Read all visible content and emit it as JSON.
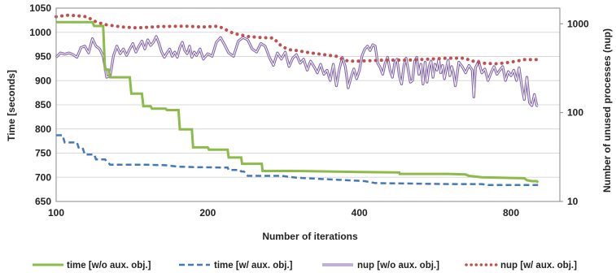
{
  "chart_data": {
    "type": "line",
    "xlabel": "Number of iterations",
    "ylabel": "Time [seconds]",
    "y2label": "Number of unused processes (nup)",
    "x_scale": "log",
    "y2_scale": "log",
    "xlim": [
      100,
      1000
    ],
    "ylim": [
      650,
      1050
    ],
    "y2lim": [
      10,
      1500
    ],
    "grid": "horizontal",
    "legend_position": "bottom",
    "x_ticks": [
      "100",
      "200",
      "400",
      "800"
    ],
    "y_ticks": [
      "650",
      "700",
      "750",
      "800",
      "850",
      "900",
      "950",
      "1000",
      "1050"
    ],
    "y2_ticks": [
      "10",
      "100",
      "1000"
    ],
    "series": [
      {
        "name": "time [w/o aux. obj.]",
        "axis": "left",
        "color": "#8dbb4a",
        "style": "solid",
        "points": [
          [
            100,
            1021
          ],
          [
            118,
            1021
          ],
          [
            119,
            1013
          ],
          [
            124,
            1013
          ],
          [
            125,
            923
          ],
          [
            127,
            923
          ],
          [
            128,
            907
          ],
          [
            140,
            907
          ],
          [
            141,
            873
          ],
          [
            148,
            873
          ],
          [
            149,
            847
          ],
          [
            154,
            847
          ],
          [
            155,
            842
          ],
          [
            165,
            842
          ],
          [
            166,
            839
          ],
          [
            175,
            839
          ],
          [
            176,
            799
          ],
          [
            186,
            799
          ],
          [
            187,
            762
          ],
          [
            200,
            762
          ],
          [
            201,
            757
          ],
          [
            219,
            757
          ],
          [
            220,
            741
          ],
          [
            233,
            741
          ],
          [
            234,
            728
          ],
          [
            256,
            728
          ],
          [
            257,
            713
          ],
          [
            300,
            713
          ],
          [
            400,
            711
          ],
          [
            480,
            710
          ],
          [
            481,
            707
          ],
          [
            600,
            707
          ],
          [
            650,
            706
          ],
          [
            660,
            703
          ],
          [
            700,
            700
          ],
          [
            760,
            699
          ],
          [
            850,
            698
          ],
          [
            860,
            694
          ],
          [
            880,
            692
          ],
          [
            900,
            692
          ],
          [
            905,
            689
          ]
        ]
      },
      {
        "name": "time [w/ aux. obj.]",
        "axis": "left",
        "color": "#4478b8",
        "style": "dashed",
        "points": [
          [
            100,
            787
          ],
          [
            103,
            787
          ],
          [
            104,
            772
          ],
          [
            110,
            772
          ],
          [
            111,
            759
          ],
          [
            113,
            759
          ],
          [
            114,
            747
          ],
          [
            119,
            747
          ],
          [
            120,
            737
          ],
          [
            125,
            737
          ],
          [
            128,
            726
          ],
          [
            150,
            726
          ],
          [
            165,
            725
          ],
          [
            175,
            722
          ],
          [
            190,
            721
          ],
          [
            219,
            720
          ],
          [
            220,
            715
          ],
          [
            232,
            715
          ],
          [
            233,
            712
          ],
          [
            236,
            712
          ],
          [
            240,
            703
          ],
          [
            280,
            703
          ],
          [
            300,
            699
          ],
          [
            360,
            695
          ],
          [
            410,
            692
          ],
          [
            430,
            688
          ],
          [
            600,
            686
          ],
          [
            700,
            686
          ],
          [
            720,
            684
          ],
          [
            905,
            684
          ]
        ]
      },
      {
        "name": "nup [w/o aux. obj.]",
        "axis": "right",
        "color": "#8264a8",
        "style": "double",
        "points": [
          [
            100,
            420
          ],
          [
            102,
            470
          ],
          [
            104,
            455
          ],
          [
            106,
            470
          ],
          [
            108,
            450
          ],
          [
            110,
            420
          ],
          [
            112,
            540
          ],
          [
            114,
            560
          ],
          [
            116,
            470
          ],
          [
            118,
            680
          ],
          [
            120,
            560
          ],
          [
            122,
            520
          ],
          [
            124,
            430
          ],
          [
            126,
            250
          ],
          [
            128,
            260
          ],
          [
            130,
            440
          ],
          [
            132,
            560
          ],
          [
            134,
            460
          ],
          [
            136,
            520
          ],
          [
            138,
            440
          ],
          [
            140,
            520
          ],
          [
            142,
            600
          ],
          [
            144,
            480
          ],
          [
            146,
            560
          ],
          [
            148,
            640
          ],
          [
            150,
            520
          ],
          [
            152,
            660
          ],
          [
            154,
            570
          ],
          [
            156,
            620
          ],
          [
            158,
            720
          ],
          [
            160,
            600
          ],
          [
            162,
            480
          ],
          [
            164,
            420
          ],
          [
            166,
            470
          ],
          [
            168,
            520
          ],
          [
            170,
            430
          ],
          [
            172,
            480
          ],
          [
            174,
            420
          ],
          [
            176,
            540
          ],
          [
            178,
            620
          ],
          [
            180,
            500
          ],
          [
            182,
            460
          ],
          [
            184,
            560
          ],
          [
            186,
            420
          ],
          [
            188,
            480
          ],
          [
            190,
            440
          ],
          [
            193,
            520
          ],
          [
            196,
            400
          ],
          [
            200,
            460
          ],
          [
            204,
            430
          ],
          [
            208,
            620
          ],
          [
            212,
            700
          ],
          [
            216,
            580
          ],
          [
            220,
            470
          ],
          [
            225,
            430
          ],
          [
            230,
            640
          ],
          [
            235,
            700
          ],
          [
            240,
            660
          ],
          [
            245,
            520
          ],
          [
            250,
            480
          ],
          [
            255,
            600
          ],
          [
            260,
            560
          ],
          [
            265,
            420
          ],
          [
            270,
            340
          ],
          [
            275,
            470
          ],
          [
            280,
            400
          ],
          [
            285,
            480
          ],
          [
            290,
            330
          ],
          [
            295,
            410
          ],
          [
            300,
            450
          ],
          [
            305,
            360
          ],
          [
            310,
            400
          ],
          [
            315,
            300
          ],
          [
            320,
            380
          ],
          [
            325,
            330
          ],
          [
            330,
            280
          ],
          [
            335,
            350
          ],
          [
            340,
            270
          ],
          [
            345,
            300
          ],
          [
            350,
            230
          ],
          [
            355,
            350
          ],
          [
            360,
            200
          ],
          [
            365,
            310
          ],
          [
            370,
            420
          ],
          [
            375,
            330
          ],
          [
            380,
            190
          ],
          [
            385,
            250
          ],
          [
            390,
            310
          ],
          [
            395,
            240
          ],
          [
            400,
            300
          ],
          [
            405,
            440
          ],
          [
            410,
            520
          ],
          [
            415,
            560
          ],
          [
            420,
            500
          ],
          [
            425,
            580
          ],
          [
            430,
            560
          ],
          [
            435,
            360
          ],
          [
            440,
            320
          ],
          [
            445,
            270
          ],
          [
            450,
            360
          ],
          [
            455,
            420
          ],
          [
            460,
            300
          ],
          [
            465,
            250
          ],
          [
            470,
            360
          ],
          [
            475,
            400
          ],
          [
            480,
            260
          ],
          [
            485,
            210
          ],
          [
            490,
            330
          ],
          [
            495,
            410
          ],
          [
            500,
            300
          ],
          [
            505,
            220
          ],
          [
            510,
            230
          ],
          [
            515,
            380
          ],
          [
            520,
            420
          ],
          [
            525,
            270
          ],
          [
            530,
            350
          ],
          [
            535,
            210
          ],
          [
            540,
            370
          ],
          [
            545,
            220
          ],
          [
            550,
            330
          ],
          [
            555,
            380
          ],
          [
            560,
            250
          ],
          [
            565,
            350
          ],
          [
            570,
            300
          ],
          [
            575,
            400
          ],
          [
            580,
            280
          ],
          [
            585,
            340
          ],
          [
            590,
            240
          ],
          [
            595,
            310
          ],
          [
            600,
            390
          ],
          [
            605,
            260
          ],
          [
            610,
            330
          ],
          [
            615,
            280
          ],
          [
            620,
            200
          ],
          [
            625,
            260
          ],
          [
            630,
            370
          ],
          [
            640,
            330
          ],
          [
            650,
            280
          ],
          [
            660,
            340
          ],
          [
            670,
            300
          ],
          [
            675,
            150
          ],
          [
            680,
            320
          ],
          [
            690,
            380
          ],
          [
            700,
            280
          ],
          [
            710,
            310
          ],
          [
            720,
            230
          ],
          [
            730,
            280
          ],
          [
            740,
            330
          ],
          [
            750,
            270
          ],
          [
            760,
            300
          ],
          [
            770,
            330
          ],
          [
            780,
            230
          ],
          [
            790,
            290
          ],
          [
            800,
            260
          ],
          [
            810,
            300
          ],
          [
            820,
            230
          ],
          [
            830,
            320
          ],
          [
            840,
            200
          ],
          [
            850,
            140
          ],
          [
            860,
            250
          ],
          [
            870,
            130
          ],
          [
            880,
            120
          ],
          [
            890,
            160
          ],
          [
            900,
            120
          ],
          [
            905,
            120
          ]
        ]
      },
      {
        "name": "nup [w/ aux. obj.]",
        "axis": "right",
        "color": "#c0504d",
        "style": "dotted",
        "points": [
          [
            100,
            1200
          ],
          [
            105,
            1250
          ],
          [
            110,
            1230
          ],
          [
            115,
            1200
          ],
          [
            120,
            1050
          ],
          [
            125,
            980
          ],
          [
            135,
            920
          ],
          [
            145,
            900
          ],
          [
            160,
            930
          ],
          [
            180,
            940
          ],
          [
            195,
            920
          ],
          [
            210,
            940
          ],
          [
            225,
            780
          ],
          [
            240,
            720
          ],
          [
            255,
            700
          ],
          [
            270,
            690
          ],
          [
            280,
            560
          ],
          [
            290,
            510
          ],
          [
            300,
            500
          ],
          [
            320,
            470
          ],
          [
            340,
            450
          ],
          [
            360,
            430
          ],
          [
            370,
            400
          ],
          [
            380,
            380
          ],
          [
            400,
            380
          ],
          [
            450,
            390
          ],
          [
            500,
            390
          ],
          [
            550,
            400
          ],
          [
            600,
            410
          ],
          [
            650,
            410
          ],
          [
            660,
            390
          ],
          [
            700,
            360
          ],
          [
            750,
            355
          ],
          [
            800,
            370
          ],
          [
            850,
            395
          ],
          [
            905,
            395
          ]
        ]
      }
    ]
  }
}
